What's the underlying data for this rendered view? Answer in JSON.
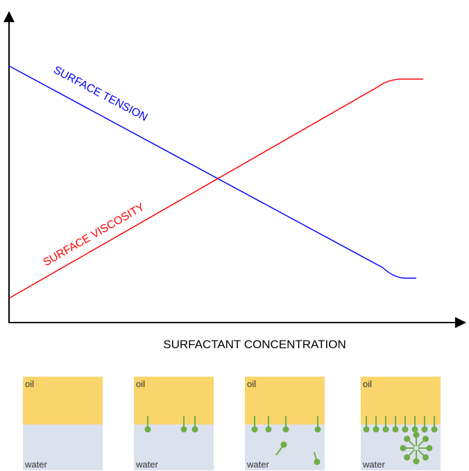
{
  "diagram": {
    "x_label": "SURFACTANT CONCENTRATION",
    "curves": [
      {
        "label": "SURFACE TENSION",
        "color": "#0000ff"
      },
      {
        "label": "SURFACE VISCOSITY",
        "color": "#ff0000"
      }
    ],
    "panels": [
      {
        "top": "oil",
        "bottom": "water"
      },
      {
        "top": "oil",
        "bottom": "water"
      },
      {
        "top": "oil",
        "bottom": "water"
      },
      {
        "top": "oil",
        "bottom": "water"
      }
    ]
  }
}
